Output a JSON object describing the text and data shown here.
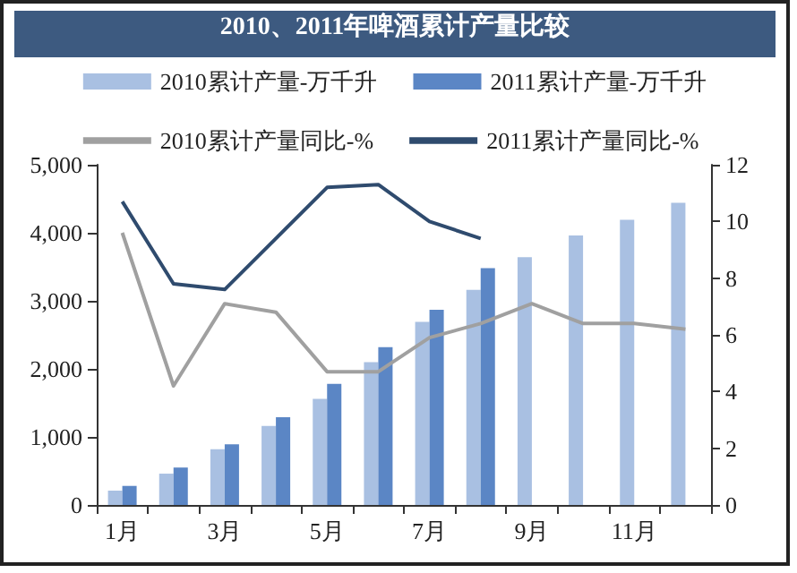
{
  "chart_data": {
    "type": "bar",
    "title": "2010、2011年啤酒累计产量比较",
    "categories": [
      "1月",
      null,
      "3月",
      null,
      "5月",
      null,
      "7月",
      null,
      "9月",
      null,
      "11月",
      null
    ],
    "series": [
      {
        "name": "2010累计产量-万千升",
        "color": "#a9c0e2",
        "values": [
          210,
          460,
          820,
          1160,
          1560,
          2100,
          2690,
          3160,
          3640,
          3960,
          4190,
          4440
        ]
      },
      {
        "name": "2011累计产量-万千升",
        "color": "#5b86c5",
        "values": [
          280,
          550,
          890,
          1290,
          1780,
          2320,
          2870,
          3480,
          null,
          null,
          null,
          null
        ]
      },
      {
        "name": "2010累计产量同比-%",
        "type": "line",
        "axis": "y2",
        "color": "#a0a0a0",
        "values": [
          9.6,
          4.2,
          7.1,
          6.8,
          4.7,
          4.7,
          5.9,
          6.4,
          7.1,
          6.4,
          6.4,
          6.2
        ]
      },
      {
        "name": "2011累计产量同比-%",
        "type": "line",
        "axis": "y2",
        "color": "#2f4b6e",
        "values": [
          10.7,
          7.8,
          7.6,
          9.4,
          11.2,
          11.3,
          10.0,
          9.4,
          null,
          null,
          null,
          null
        ]
      }
    ],
    "ylim": [
      0,
      5000
    ],
    "yticks": [
      0,
      {
        "value": 1000,
        "label": "1,000"
      },
      {
        "value": 2000,
        "label": "2,000"
      },
      {
        "value": 3000,
        "label": "3,000"
      },
      {
        "value": 4000,
        "label": "4,000"
      },
      {
        "value": 5000,
        "label": "5,000"
      }
    ],
    "y2lim": [
      0,
      12
    ],
    "y2ticks": [
      0,
      2,
      4,
      6,
      8,
      10,
      12
    ],
    "grid": false,
    "legend": "top",
    "marker": "none",
    "line_style": "solid"
  }
}
